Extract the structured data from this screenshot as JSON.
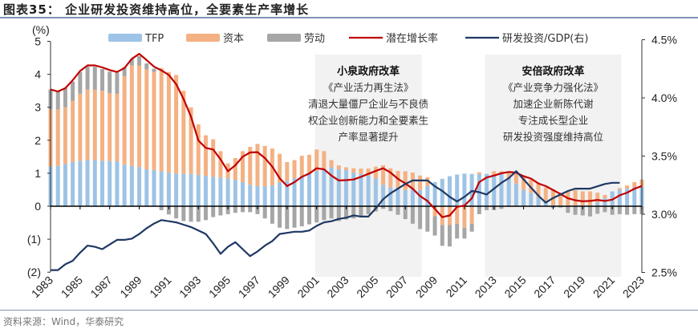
{
  "header": {
    "title": "图表35：  企业研发投资维持高位，全要素生产率增长"
  },
  "footer": {
    "source": "资料来源：Wind，华泰研究"
  },
  "colors": {
    "tfp": "#9dc3e6",
    "capital": "#f4b183",
    "labor": "#a6a6a6",
    "potential": "#c00000",
    "rd": "#1f3864",
    "shade": "#f2f2f2"
  },
  "chart_data": {
    "type": "bar",
    "stacked": true,
    "left_axis": {
      "unit_label": "(%)",
      "ylim": [
        -2,
        5
      ],
      "tick_labels": [
        "(2)",
        "(1)",
        "0",
        "1",
        "2",
        "3",
        "4",
        "5"
      ]
    },
    "right_axis": {
      "ylim": [
        2.5,
        4.5
      ],
      "tick_labels": [
        "2.5%",
        "3.0%",
        "3.5%",
        "4.0%",
        "4.5%"
      ]
    },
    "x_tick_labels": [
      "1983",
      "1985",
      "1987",
      "1989",
      "1991",
      "1993",
      "1995",
      "1997",
      "1999",
      "2001",
      "2003",
      "2005",
      "2007",
      "2009",
      "2011",
      "2013",
      "2015",
      "2017",
      "2019",
      "2021",
      "2023"
    ],
    "legend": [
      "TFP",
      "资本",
      "劳动",
      "潜在增长率",
      "研发投资/GDP(右)"
    ],
    "legend_position": "top",
    "x_start": 1983,
    "x_step": 0.5,
    "series": [
      {
        "name": "TFP",
        "kind": "bar",
        "values": [
          1.2,
          1.22,
          1.28,
          1.34,
          1.38,
          1.4,
          1.4,
          1.38,
          1.37,
          1.36,
          1.26,
          1.22,
          1.18,
          1.12,
          1.1,
          1.06,
          1.02,
          0.99,
          0.98,
          0.98,
          0.95,
          0.92,
          0.89,
          0.87,
          0.84,
          0.8,
          0.73,
          0.65,
          0.61,
          0.61,
          0.63,
          0.72,
          0.77,
          0.85,
          0.93,
          1.02,
          1.07,
          1.14,
          1.18,
          1.12,
          1.1,
          1.02,
          0.98,
          0.93,
          0.85,
          0.65,
          0.57,
          0.53,
          0.49,
          0.53,
          0.49,
          0.61,
          0.73,
          0.83,
          0.91,
          0.96,
          0.99,
          0.98,
          0.98,
          0.98,
          0.93,
          0.98,
          0.85,
          0.69,
          0.49,
          0.41,
          0.28,
          0.16,
          0.04,
          0.02,
          0.02,
          0.02,
          0.02,
          0.02,
          0.12,
          0.24,
          0.45,
          0.5,
          0.53,
          0.57,
          0.59
        ]
      },
      {
        "name": "资本",
        "kind": "bar",
        "values": [
          1.74,
          1.71,
          1.72,
          1.86,
          2.03,
          2.14,
          2.14,
          2.12,
          2.06,
          2.05,
          2.68,
          3.05,
          3.09,
          3.03,
          2.97,
          3.13,
          3.05,
          2.99,
          2.52,
          2.02,
          1.53,
          1.23,
          1.14,
          0.8,
          0.46,
          0.66,
          0.94,
          1.15,
          1.28,
          1.22,
          1.12,
          0.87,
          0.57,
          0.55,
          0.6,
          0.54,
          0.65,
          0.53,
          0.22,
          0.12,
          0.08,
          0.13,
          0.16,
          0.21,
          0.35,
          0.59,
          0.58,
          0.54,
          0.57,
          0.49,
          0.44,
          0.27,
          -0.3,
          -0.57,
          -0.57,
          -0.53,
          -0.65,
          -0.53,
          0.05,
          0.0,
          0.13,
          0.08,
          0.19,
          0.33,
          0.44,
          0.4,
          0.41,
          0.41,
          0.45,
          0.39,
          0.43,
          0.47,
          0.43,
          0.43,
          0.29,
          0.1,
          0.0,
          0.05,
          0.1,
          0.16,
          0.22
        ]
      },
      {
        "name": "劳动",
        "kind": "bar",
        "values": [
          0.6,
          0.55,
          0.58,
          0.58,
          0.66,
          0.69,
          0.69,
          0.66,
          0.65,
          0.64,
          0.28,
          0.2,
          0.28,
          0.18,
          0.1,
          -0.12,
          -0.25,
          -0.37,
          -0.45,
          -0.47,
          -0.47,
          -0.42,
          -0.33,
          -0.28,
          -0.24,
          -0.2,
          -0.18,
          -0.18,
          -0.24,
          -0.37,
          -0.53,
          -0.65,
          -0.69,
          -0.65,
          -0.61,
          -0.55,
          -0.49,
          -0.42,
          -0.37,
          -0.45,
          -0.4,
          -0.37,
          -0.33,
          -0.24,
          -0.16,
          -0.08,
          -0.15,
          -0.26,
          -0.39,
          -0.53,
          -0.69,
          -0.77,
          -0.59,
          -0.63,
          -0.65,
          -0.45,
          -0.33,
          -0.24,
          -0.24,
          -0.12,
          -0.12,
          -0.08,
          -0.02,
          0,
          0,
          0,
          0,
          0,
          -0.05,
          -0.04,
          -0.2,
          -0.26,
          -0.28,
          -0.31,
          -0.23,
          -0.18,
          -0.26,
          -0.24,
          -0.26,
          -0.24,
          -0.24
        ]
      },
      {
        "name": "潜在增长率",
        "kind": "line",
        "axis": "left",
        "values": [
          3.54,
          3.48,
          3.58,
          3.82,
          4.1,
          4.27,
          4.27,
          4.21,
          4.13,
          4.07,
          4.19,
          4.47,
          4.62,
          4.43,
          4.23,
          4.12,
          3.98,
          3.7,
          3.25,
          2.72,
          1.99,
          1.77,
          1.72,
          1.42,
          1.06,
          1.24,
          1.5,
          1.63,
          1.64,
          1.46,
          1.2,
          0.85,
          0.61,
          0.73,
          0.89,
          0.99,
          1.15,
          1.12,
          0.93,
          0.78,
          0.79,
          0.81,
          0.89,
          0.98,
          1.07,
          1.15,
          1.02,
          0.83,
          0.69,
          0.53,
          0.31,
          0.16,
          -0.08,
          -0.33,
          -0.28,
          -0.02,
          0.02,
          0.24,
          0.73,
          0.87,
          0.93,
          1.0,
          1.04,
          1.02,
          0.91,
          0.84,
          0.69,
          0.61,
          0.49,
          0.37,
          0.24,
          0.18,
          0.15,
          0.16,
          0.19,
          0.16,
          0.2,
          0.33,
          0.41,
          0.53,
          0.61
        ]
      },
      {
        "name": "研发投资/GDP(右)",
        "kind": "line",
        "axis": "right",
        "values": [
          2.52,
          2.52,
          2.57,
          2.6,
          2.67,
          2.73,
          2.72,
          2.7,
          2.74,
          2.78,
          2.78,
          2.79,
          2.83,
          2.88,
          2.92,
          2.95,
          2.94,
          2.93,
          2.91,
          2.89,
          2.86,
          2.83,
          2.75,
          2.66,
          2.72,
          2.76,
          2.7,
          2.64,
          2.68,
          2.73,
          2.77,
          2.83,
          2.84,
          2.85,
          2.85,
          2.86,
          2.9,
          2.93,
          2.94,
          2.96,
          2.97,
          2.99,
          2.98,
          2.98,
          3.05,
          3.13,
          3.18,
          3.22,
          3.26,
          3.29,
          3.29,
          3.29,
          3.24,
          3.2,
          3.15,
          3.11,
          3.15,
          3.2,
          3.19,
          3.17,
          3.22,
          3.27,
          3.31,
          3.37,
          3.3,
          3.23,
          3.16,
          3.1,
          3.14,
          3.17,
          3.2,
          3.22,
          3.22,
          3.22,
          3.24,
          3.26,
          3.27,
          3.27,
          null,
          null,
          null
        ]
      }
    ],
    "shaded_periods": [
      {
        "from": 2001,
        "to": 2008,
        "lines": [
          "小泉政府改革",
          "《产业活力再生法》",
          "清退大量僵尸企业与不良债",
          "权企业创新能力和全要素生",
          "产率显著提升"
        ]
      },
      {
        "from": 2012.5,
        "to": 2021.5,
        "lines": [
          "安倍政府改革",
          "《产业竞争力强化法》",
          "加速企业新陈代谢",
          "专注成长型企业",
          "研发投资强度维持高位"
        ]
      }
    ]
  }
}
